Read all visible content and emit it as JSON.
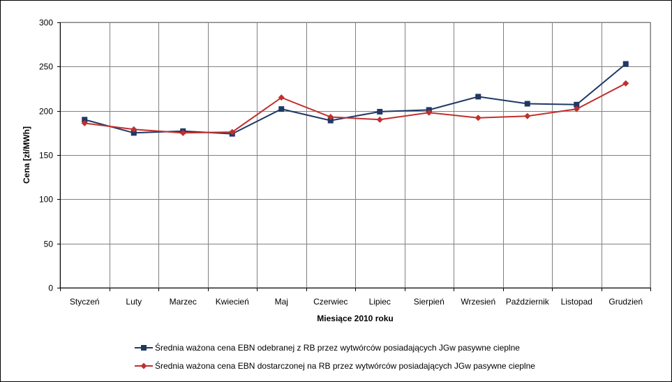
{
  "chart_data": {
    "type": "line",
    "title": "",
    "xlabel": "Miesiące 2010  roku",
    "ylabel": "Cena [zł/MWh]",
    "ylim": [
      0,
      300
    ],
    "yticks": [
      0,
      50,
      100,
      150,
      200,
      250,
      300
    ],
    "grid": true,
    "legend_position": "bottom",
    "categories": [
      "Styczeń",
      "Luty",
      "Marzec",
      "Kwiecień",
      "Maj",
      "Czerwiec",
      "Lipiec",
      "Sierpień",
      "Wrzesień",
      "Październik",
      "Listopad",
      "Grudzień"
    ],
    "series": [
      {
        "name": "Średnia ważona cena EBN odebranej z RB  przez wytwórców posiadających JGw pasywne cieplne",
        "color": "#1f3864",
        "marker": "square",
        "values": [
          190,
          175,
          177,
          174,
          202,
          189,
          199,
          201,
          216,
          208,
          207,
          253
        ]
      },
      {
        "name": "Średnia ważona cena EBN dostarczonej na RB przez wytwórców posiadających JGw pasywne cieplne",
        "color": "#c0302e",
        "marker": "diamond",
        "values": [
          186,
          179,
          175,
          176,
          215,
          193,
          190,
          198,
          192,
          194,
          202,
          231
        ]
      }
    ]
  }
}
